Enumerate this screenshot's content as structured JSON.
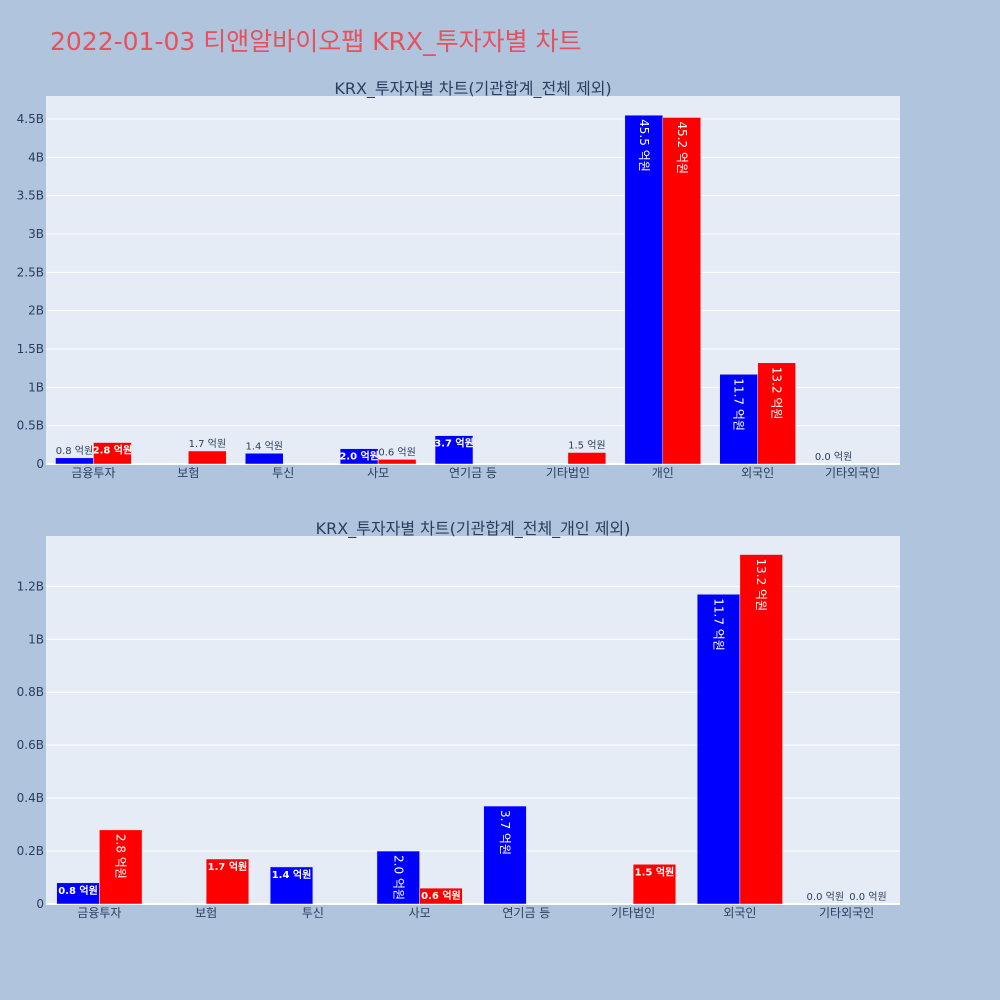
{
  "title": "2022-01-03 티앤알바이오팹 KRX_투자자별 차트",
  "chart_data": [
    {
      "type": "bar",
      "title": "KRX_투자자별 차트(기관합계_전체 제외)",
      "categories": [
        "금융투자",
        "보험",
        "투신",
        "사모",
        "연기금 등",
        "기타법인",
        "개인",
        "외국인",
        "기타외국인"
      ],
      "series": [
        {
          "color": "#0000ff",
          "values": [
            80000000,
            null,
            140000000,
            200000000,
            370000000,
            null,
            4550000000,
            1170000000,
            0
          ],
          "labels": [
            "0.8 억원",
            "",
            "1.4 억원",
            "2.0 억원",
            "3.7 억원",
            "",
            "45.5 억원",
            "11.7 억원",
            "0.0 억원"
          ]
        },
        {
          "color": "#ff0000",
          "values": [
            280000000,
            170000000,
            null,
            60000000,
            null,
            150000000,
            4520000000,
            1320000000,
            null
          ],
          "labels": [
            "2.8 억원",
            "1.7 억원",
            "",
            "0.6 억원",
            "",
            "1.5 억원",
            "45.2 억원",
            "13.2 억원",
            ""
          ]
        }
      ],
      "yticks": [
        0,
        500000000,
        1000000000,
        1500000000,
        2000000000,
        2500000000,
        3000000000,
        3500000000,
        4000000000,
        4500000000
      ],
      "ytick_labels": [
        "0",
        "0.5B",
        "1B",
        "1.5B",
        "2B",
        "2.5B",
        "3B",
        "3.5B",
        "4B",
        "4.5B"
      ],
      "ylim": [
        0,
        4800000000
      ],
      "grid": true
    },
    {
      "type": "bar",
      "title": "KRX_투자자별 차트(기관합계_전체_개인 제외)",
      "categories": [
        "금융투자",
        "보험",
        "투신",
        "사모",
        "연기금 등",
        "기타법인",
        "외국인",
        "기타외국인"
      ],
      "series": [
        {
          "color": "#0000ff",
          "values": [
            80000000,
            null,
            140000000,
            200000000,
            370000000,
            null,
            1170000000,
            0
          ],
          "labels": [
            "0.8 억원",
            "",
            "1.4 억원",
            "2.0 억원",
            "3.7 억원",
            "",
            "11.7 억원",
            "0.0 억원"
          ]
        },
        {
          "color": "#ff0000",
          "values": [
            280000000,
            170000000,
            null,
            60000000,
            null,
            150000000,
            1320000000,
            0
          ],
          "labels": [
            "2.8 억원",
            "1.7 억원",
            "",
            "0.6 억원",
            "",
            "1.5 억원",
            "13.2 억원",
            "0.0 억원"
          ]
        }
      ],
      "yticks": [
        0,
        200000000,
        400000000,
        600000000,
        800000000,
        1000000000,
        1200000000
      ],
      "ytick_labels": [
        "0",
        "0.2B",
        "0.4B",
        "0.6B",
        "0.8B",
        "1B",
        "1.2B"
      ],
      "ylim": [
        0,
        1390000000
      ],
      "grid": true
    }
  ]
}
